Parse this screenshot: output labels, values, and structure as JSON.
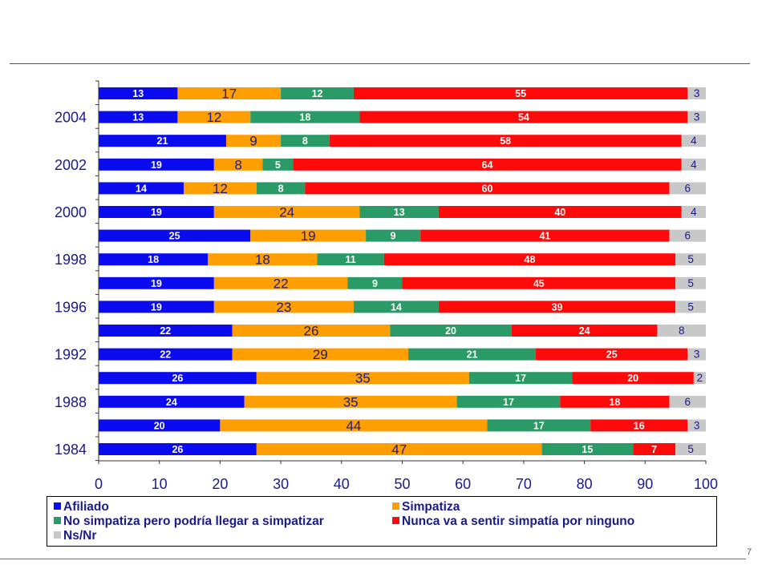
{
  "page_number": "7",
  "colors": {
    "afiliado": "#0b0bf0",
    "simpatiza": "#ff9e00",
    "no_simpatiza": "#2a9a66",
    "nunca": "#ff0a0a",
    "nsnr": "#c8c8c8",
    "axis_text": "#1a1a8c"
  },
  "chart_data": {
    "type": "bar",
    "orientation": "horizontal",
    "stacked": true,
    "xlim": [
      0,
      100
    ],
    "x_ticks": [
      "0",
      "10",
      "20",
      "30",
      "40",
      "50",
      "60",
      "70",
      "80",
      "90",
      "100"
    ],
    "year_labels": [
      "2004",
      "2002",
      "2000",
      "1998",
      "1996",
      "1992",
      "1988",
      "1984"
    ],
    "rows": [
      {
        "values": [
          13,
          17,
          12,
          55,
          3
        ]
      },
      {
        "label": "2004",
        "values": [
          13,
          12,
          18,
          54,
          3
        ]
      },
      {
        "values": [
          21,
          9,
          8,
          58,
          4
        ]
      },
      {
        "label": "2002",
        "values": [
          19,
          8,
          5,
          64,
          4
        ]
      },
      {
        "values": [
          14,
          12,
          8,
          60,
          6
        ]
      },
      {
        "label": "2000",
        "values": [
          19,
          24,
          13,
          40,
          4
        ]
      },
      {
        "values": [
          25,
          19,
          9,
          41,
          6
        ]
      },
      {
        "label": "1998",
        "values": [
          18,
          18,
          11,
          48,
          5
        ]
      },
      {
        "values": [
          19,
          22,
          9,
          45,
          5
        ]
      },
      {
        "label": "1996",
        "values": [
          19,
          23,
          14,
          39,
          5
        ]
      },
      {
        "values": [
          22,
          26,
          20,
          24,
          8
        ]
      },
      {
        "label": "1992",
        "values": [
          22,
          29,
          21,
          25,
          3
        ]
      },
      {
        "values": [
          26,
          35,
          17,
          20,
          2
        ]
      },
      {
        "label": "1988",
        "values": [
          24,
          35,
          17,
          18,
          6
        ]
      },
      {
        "values": [
          20,
          44,
          17,
          16,
          3
        ]
      },
      {
        "label": "1984",
        "values": [
          26,
          47,
          15,
          7,
          5
        ]
      }
    ],
    "series": [
      {
        "name": "Afiliado"
      },
      {
        "name": "Simpatiza"
      },
      {
        "name": "No simpatiza pero podría llegar a simpatizar"
      },
      {
        "name": "Nunca va a sentir simpatía por ninguno"
      },
      {
        "name": "Ns/Nr"
      }
    ],
    "legend_position": "bottom",
    "grid": false
  }
}
